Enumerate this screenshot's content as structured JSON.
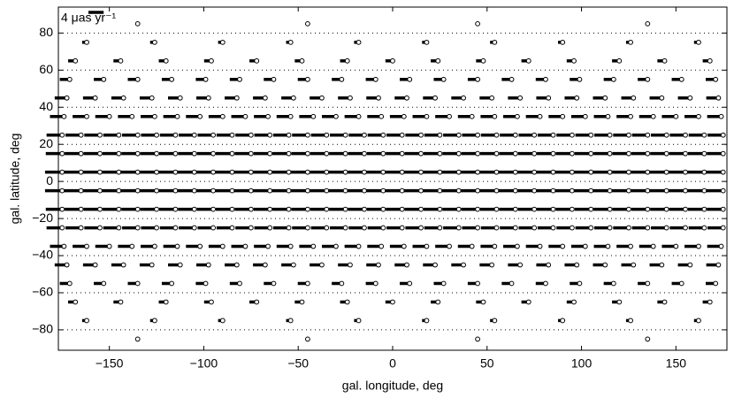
{
  "chart_data": {
    "type": "quiver",
    "xlabel": "gal. longitude,  deg",
    "ylabel": "gal. latitude,  deg",
    "xlim": [
      -177,
      177
    ],
    "ylim": [
      -91,
      94
    ],
    "xticks": [
      {
        "value": -150,
        "label": "−150"
      },
      {
        "value": -100,
        "label": "−100"
      },
      {
        "value": -50,
        "label": "−50"
      },
      0,
      50,
      100,
      150
    ],
    "yticks": [
      {
        "value": -80,
        "label": "−80"
      },
      {
        "value": -60,
        "label": "−60"
      },
      {
        "value": -40,
        "label": "−40"
      },
      {
        "value": -20,
        "label": "−20"
      },
      0,
      20,
      40,
      60,
      80
    ],
    "grid": true,
    "color": "#000000",
    "scale_bar": {
      "value": 4,
      "label": "4 μas yr⁻¹"
    },
    "rows": [
      {
        "lat": [
          85,
          -85
        ],
        "pm": -0.4,
        "lon": [
          -135,
          -45,
          45,
          135
        ]
      },
      {
        "lat": [
          75,
          -75
        ],
        "pm": -1.2,
        "lon": [
          -162,
          -126,
          -90,
          -54,
          -18,
          18,
          54,
          90,
          126,
          162
        ]
      },
      {
        "lat": [
          65,
          -65
        ],
        "pm": -1.9,
        "lon": [
          -168,
          -144,
          -120,
          -96,
          -72,
          -48,
          -24,
          0,
          24,
          48,
          72,
          96,
          120,
          144,
          168
        ]
      },
      {
        "lat": [
          55,
          -55
        ],
        "pm": -2.6,
        "lon": [
          -171,
          -153,
          -135,
          -117,
          -99,
          -81,
          -63,
          -45,
          -27,
          -9,
          9,
          27,
          45,
          63,
          81,
          99,
          117,
          135,
          153,
          171
        ]
      },
      {
        "lat": [
          45,
          -45
        ],
        "pm": -3.2,
        "lon": [
          -172.5,
          -157.5,
          -142.5,
          -127.5,
          -112.5,
          -97.5,
          -82.5,
          -67.5,
          -52.5,
          -37.5,
          -22.5,
          -7.5,
          7.5,
          22.5,
          37.5,
          52.5,
          67.5,
          82.5,
          97.5,
          112.5,
          127.5,
          142.5,
          157.5,
          172.5
        ]
      },
      {
        "lat": [
          35,
          -35
        ],
        "pm": -3.7,
        "lon": [
          -174,
          -162,
          -150,
          -138,
          -126,
          -114,
          -102,
          -90,
          -78,
          -66,
          -54,
          -42,
          -30,
          -18,
          -6,
          6,
          18,
          30,
          42,
          54,
          66,
          78,
          90,
          102,
          114,
          126,
          138,
          150,
          162,
          174
        ]
      },
      {
        "lat": [
          25,
          -25
        ],
        "pm": -4.1,
        "lon": [
          -175,
          -165,
          -155,
          -145,
          -135,
          -125,
          -115,
          -105,
          -95,
          -85,
          -75,
          -65,
          -55,
          -45,
          -35,
          -25,
          -15,
          -5,
          5,
          15,
          25,
          35,
          45,
          55,
          65,
          75,
          85,
          95,
          105,
          115,
          125,
          135,
          145,
          155,
          165,
          175
        ]
      },
      {
        "lat": [
          15,
          -15
        ],
        "pm": -4.3,
        "lon": [
          -175,
          -165,
          -155,
          -145,
          -135,
          -125,
          -115,
          -105,
          -95,
          -85,
          -75,
          -65,
          -55,
          -45,
          -35,
          -25,
          -15,
          -5,
          5,
          15,
          25,
          35,
          45,
          55,
          65,
          75,
          85,
          95,
          105,
          115,
          125,
          135,
          145,
          155,
          165,
          175
        ]
      },
      {
        "lat": [
          5,
          -5
        ],
        "pm": -4.5,
        "lon": [
          -175,
          -165,
          -155,
          -145,
          -135,
          -125,
          -115,
          -105,
          -95,
          -85,
          -75,
          -65,
          -55,
          -45,
          -35,
          -25,
          -15,
          -5,
          5,
          15,
          25,
          35,
          45,
          55,
          65,
          75,
          85,
          95,
          105,
          115,
          125,
          135,
          145,
          155,
          165,
          175
        ]
      }
    ]
  }
}
